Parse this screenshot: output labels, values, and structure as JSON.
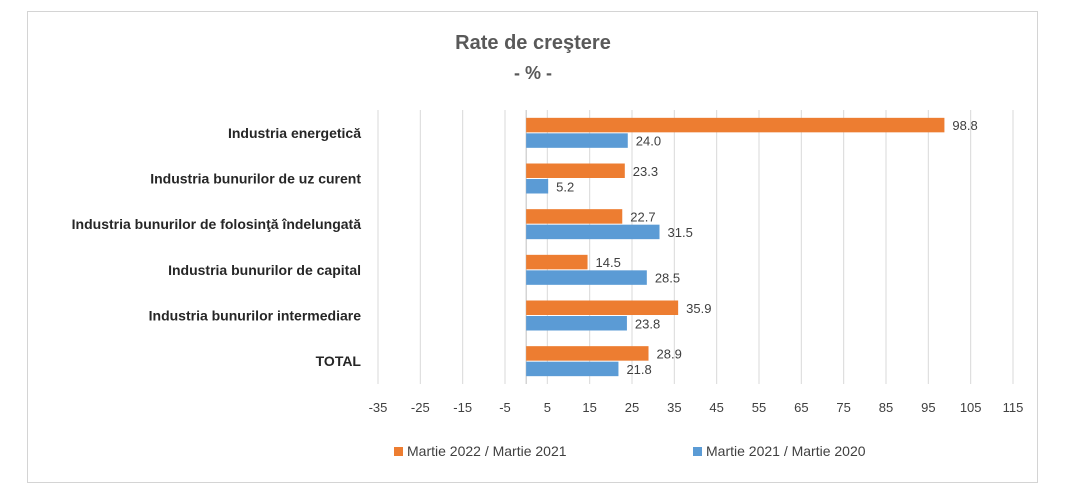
{
  "chart_data": {
    "type": "bar",
    "orientation": "horizontal",
    "title": "Rate de creştere",
    "subtitle": "- % -",
    "categories": [
      "Industria energetică",
      "Industria bunurilor de uz curent",
      "Industria bunurilor de folosinţă  îndelungată",
      "Industria bunurilor de capital",
      "Industria bunurilor intermediare",
      "TOTAL"
    ],
    "series": [
      {
        "name": "Martie  2022 / Martie  2021",
        "color": "#ed7d31",
        "values": [
          98.8,
          23.3,
          22.7,
          14.5,
          35.9,
          28.9
        ]
      },
      {
        "name": "Martie 2021 / Martie  2020",
        "color": "#5b9bd5",
        "values": [
          24.0,
          5.2,
          31.5,
          28.5,
          23.8,
          21.8
        ]
      }
    ],
    "xlim": [
      -35,
      115
    ],
    "xticks": [
      "-35",
      "-25",
      "-15",
      "-5",
      "5",
      "15",
      "25",
      "35",
      "45",
      "55",
      "65",
      "75",
      "85",
      "95",
      "105",
      "115"
    ],
    "grid": "vertical",
    "legend": "bottom"
  }
}
